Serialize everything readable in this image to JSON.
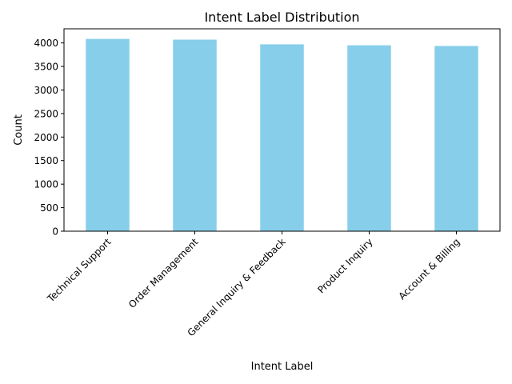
{
  "chart_data": {
    "type": "bar",
    "title": "Intent Label Distribution",
    "xlabel": "Intent Label",
    "ylabel": "Count",
    "categories": [
      "Technical Support",
      "Order Management",
      "General Inquiry & Feedback",
      "Product Inquiry",
      "Account & Billing"
    ],
    "values": [
      4085,
      4070,
      3970,
      3950,
      3935
    ],
    "ylim": [
      0,
      4300
    ],
    "yticks": [
      0,
      500,
      1000,
      1500,
      2000,
      2500,
      3000,
      3500,
      4000
    ],
    "bar_color": "#87ceeb",
    "grid": false,
    "legend": false
  }
}
